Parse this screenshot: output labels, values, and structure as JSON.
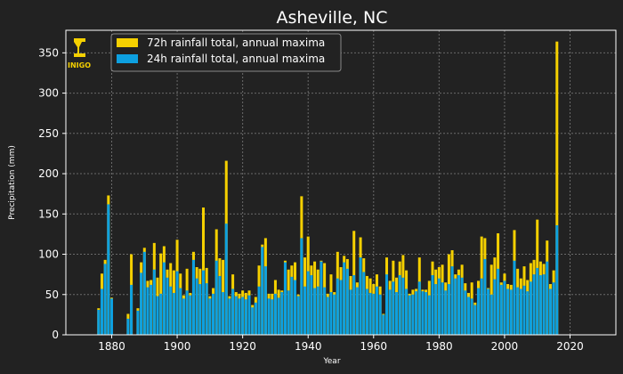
{
  "chart_data": {
    "type": "bar",
    "subtype": "overlapping-bars",
    "title": "Asheville, NC",
    "xlabel": "Year",
    "ylabel": "Precipitation (mm)",
    "xlim": [
      1866,
      2034
    ],
    "ylim": [
      0,
      378
    ],
    "xticks": [
      1880,
      1900,
      1920,
      1940,
      1960,
      1980,
      2000,
      2020
    ],
    "yticks": [
      0,
      50,
      100,
      150,
      200,
      250,
      300,
      350
    ],
    "grid": true,
    "grid_style": "dotted",
    "legend_position": "top-left",
    "logo": {
      "text": "INIGO",
      "color": "#f5d000"
    },
    "start_year": 1876,
    "series": [
      {
        "name": "72h rainfall total, annual maxima",
        "color": "#f5d000",
        "values": [
          33,
          76,
          93,
          173,
          46,
          null,
          null,
          null,
          null,
          26,
          100,
          null,
          33,
          90,
          108,
          67,
          68,
          114,
          71,
          101,
          110,
          81,
          89,
          80,
          118,
          76,
          49,
          82,
          52,
          103,
          84,
          82,
          158,
          83,
          48,
          58,
          131,
          95,
          93,
          216,
          48,
          75,
          53,
          51,
          55,
          52,
          55,
          37,
          47,
          86,
          112,
          120,
          51,
          51,
          68,
          56,
          55,
          92,
          81,
          86,
          90,
          50,
          172,
          96,
          122,
          86,
          91,
          81,
          92,
          89,
          51,
          75,
          53,
          103,
          84,
          98,
          94,
          73,
          129,
          65,
          121,
          95,
          73,
          70,
          63,
          75,
          60,
          26,
          96,
          67,
          92,
          71,
          91,
          99,
          80,
          51,
          56,
          57,
          96,
          56,
          56,
          67,
          91,
          81,
          84,
          87,
          65,
          100,
          105,
          75,
          81,
          87,
          64,
          52,
          65,
          40,
          67,
          122,
          120,
          58,
          87,
          96,
          126,
          65,
          76,
          63,
          62,
          130,
          82,
          70,
          85,
          68,
          89,
          93,
          143,
          91,
          88,
          117,
          63,
          80,
          364
        ]
      },
      {
        "name": "24h rainfall total, annual maxima",
        "color": "#0da0e0",
        "values": [
          31,
          57,
          88,
          162,
          45,
          null,
          null,
          null,
          null,
          20,
          62,
          null,
          30,
          77,
          103,
          59,
          62,
          81,
          48,
          51,
          90,
          71,
          60,
          52,
          79,
          58,
          45,
          55,
          49,
          93,
          70,
          63,
          80,
          64,
          45,
          51,
          92,
          73,
          53,
          138,
          45,
          57,
          48,
          45,
          47,
          44,
          49,
          34,
          40,
          60,
          109,
          85,
          45,
          44,
          51,
          46,
          53,
          90,
          55,
          72,
          68,
          48,
          120,
          60,
          79,
          74,
          58,
          60,
          91,
          59,
          47,
          53,
          50,
          70,
          68,
          90,
          82,
          56,
          74,
          59,
          96,
          78,
          57,
          52,
          51,
          60,
          50,
          25,
          75,
          56,
          66,
          53,
          74,
          71,
          57,
          49,
          50,
          54,
          66,
          54,
          53,
          49,
          74,
          63,
          70,
          65,
          55,
          63,
          85,
          70,
          74,
          71,
          55,
          47,
          45,
          37,
          58,
          70,
          94,
          57,
          50,
          69,
          82,
          62,
          67,
          57,
          56,
          92,
          59,
          57,
          61,
          54,
          66,
          75,
          83,
          74,
          75,
          91,
          57,
          65,
          136
        ]
      }
    ]
  }
}
